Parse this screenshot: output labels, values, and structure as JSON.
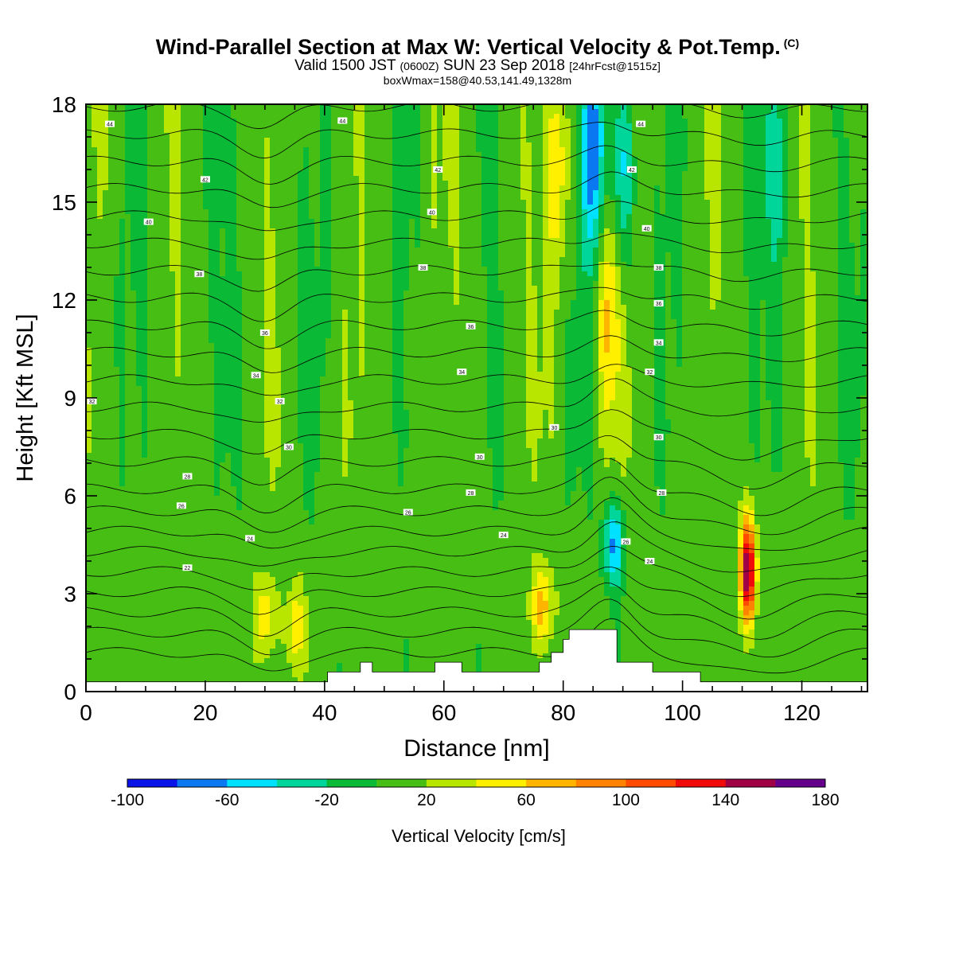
{
  "header": {
    "title": "Wind-Parallel Section at Max W: Vertical Velocity & Pot.Temp.",
    "title_mark": "(C)",
    "valid_a": "Valid 1500 JST",
    "valid_b": "(0600Z)",
    "valid_c": "SUN 23 Sep 2018",
    "valid_d": "[24hrFcst@1515z]",
    "boxmax": "boxWmax=158@40.53,141.49,1328m"
  },
  "chart_data": {
    "type": "heatmap",
    "xlabel": "Distance [nm]",
    "ylabel": "Height [Kft MSL]",
    "xlim": [
      0,
      131
    ],
    "ylim": [
      0,
      18
    ],
    "x_ticks": [
      0,
      20,
      40,
      60,
      80,
      100,
      120
    ],
    "y_ticks": [
      0,
      3,
      6,
      9,
      12,
      15,
      18
    ],
    "colorbar": {
      "label": "Vertical Velocity [cm/s]",
      "bounds": [
        -100,
        -80,
        -60,
        -40,
        -20,
        0,
        20,
        40,
        60,
        80,
        100,
        120,
        140,
        160,
        180
      ],
      "tick_labels": [
        -100,
        -60,
        -20,
        20,
        60,
        100,
        140,
        180
      ],
      "colors": [
        "#0a14e6",
        "#0a78f0",
        "#00e1ff",
        "#00d59a",
        "#0ab935",
        "#46be14",
        "#b8e600",
        "#fff000",
        "#ffb400",
        "#ff8200",
        "#ff4b00",
        "#f00a0a",
        "#a00046",
        "#64008c"
      ]
    },
    "velocity_features": [
      {
        "x": 30,
        "z": 2.3,
        "w": 50
      },
      {
        "x": 35,
        "z": 2.0,
        "w": 45
      },
      {
        "x": 76.5,
        "z": 2.6,
        "w": 65
      },
      {
        "x": 87.5,
        "z": 11.5,
        "w": 55
      },
      {
        "x": 79,
        "z": 16,
        "w": 50
      },
      {
        "x": 111,
        "z": 3.7,
        "w": 158
      },
      {
        "x": 85,
        "z": 16.5,
        "w": -85
      },
      {
        "x": 88.5,
        "z": 4.5,
        "w": -70
      },
      {
        "x": 90,
        "z": 16,
        "w": -60
      },
      {
        "x": 116,
        "z": 16,
        "w": -45
      }
    ],
    "terrain": [
      [
        40.5,
        0.6
      ],
      [
        46,
        0.6
      ],
      [
        46,
        0.9
      ],
      [
        48,
        0.9
      ],
      [
        48,
        0.6
      ],
      [
        58.5,
        0.6
      ],
      [
        58.5,
        0.9
      ],
      [
        63,
        0.9
      ],
      [
        63,
        0.6
      ],
      [
        76,
        0.6
      ],
      [
        76,
        0.9
      ],
      [
        78,
        0.9
      ],
      [
        78,
        1.2
      ],
      [
        80,
        1.2
      ],
      [
        80,
        1.6
      ],
      [
        81,
        1.6
      ],
      [
        81,
        1.9
      ],
      [
        89,
        1.9
      ],
      [
        89,
        0.9
      ],
      [
        95,
        0.9
      ],
      [
        95,
        0.6
      ],
      [
        103,
        0.6
      ]
    ],
    "theta_labels": [
      {
        "x": 4,
        "z": 17.4,
        "text": "44"
      },
      {
        "x": 43,
        "z": 17.5,
        "text": "44"
      },
      {
        "x": 20,
        "z": 15.7,
        "text": "42"
      },
      {
        "x": 59,
        "z": 16.0,
        "text": "42"
      },
      {
        "x": 93,
        "z": 17.4,
        "text": "44"
      },
      {
        "x": 91.5,
        "z": 16.0,
        "text": "42"
      },
      {
        "x": 10.5,
        "z": 14.4,
        "text": "40"
      },
      {
        "x": 58,
        "z": 14.7,
        "text": "40"
      },
      {
        "x": 94,
        "z": 14.2,
        "text": "40"
      },
      {
        "x": 19,
        "z": 12.8,
        "text": "38"
      },
      {
        "x": 56.5,
        "z": 13.0,
        "text": "38"
      },
      {
        "x": 96,
        "z": 13.0,
        "text": "38"
      },
      {
        "x": 30,
        "z": 11.0,
        "text": "36"
      },
      {
        "x": 64.5,
        "z": 11.2,
        "text": "36"
      },
      {
        "x": 96,
        "z": 11.9,
        "text": "36"
      },
      {
        "x": 28.5,
        "z": 9.7,
        "text": "34"
      },
      {
        "x": 63,
        "z": 9.8,
        "text": "34"
      },
      {
        "x": 96,
        "z": 10.7,
        "text": "34"
      },
      {
        "x": 1,
        "z": 8.9,
        "text": "32"
      },
      {
        "x": 32.5,
        "z": 8.9,
        "text": "32"
      },
      {
        "x": 94.5,
        "z": 9.8,
        "text": "32"
      },
      {
        "x": 34,
        "z": 7.5,
        "text": "30"
      },
      {
        "x": 66,
        "z": 7.2,
        "text": "30"
      },
      {
        "x": 78.5,
        "z": 8.1,
        "text": "30"
      },
      {
        "x": 96,
        "z": 7.8,
        "text": "30"
      },
      {
        "x": 17,
        "z": 6.6,
        "text": "28"
      },
      {
        "x": 64.5,
        "z": 6.1,
        "text": "28"
      },
      {
        "x": 96.5,
        "z": 6.1,
        "text": "28"
      },
      {
        "x": 16,
        "z": 5.7,
        "text": "26"
      },
      {
        "x": 54,
        "z": 5.5,
        "text": "26"
      },
      {
        "x": 27.5,
        "z": 4.7,
        "text": "24"
      },
      {
        "x": 70,
        "z": 4.8,
        "text": "24"
      },
      {
        "x": 90.5,
        "z": 4.6,
        "text": "26"
      },
      {
        "x": 17,
        "z": 3.8,
        "text": "22"
      },
      {
        "x": 94.5,
        "z": 4.0,
        "text": "24"
      }
    ]
  }
}
